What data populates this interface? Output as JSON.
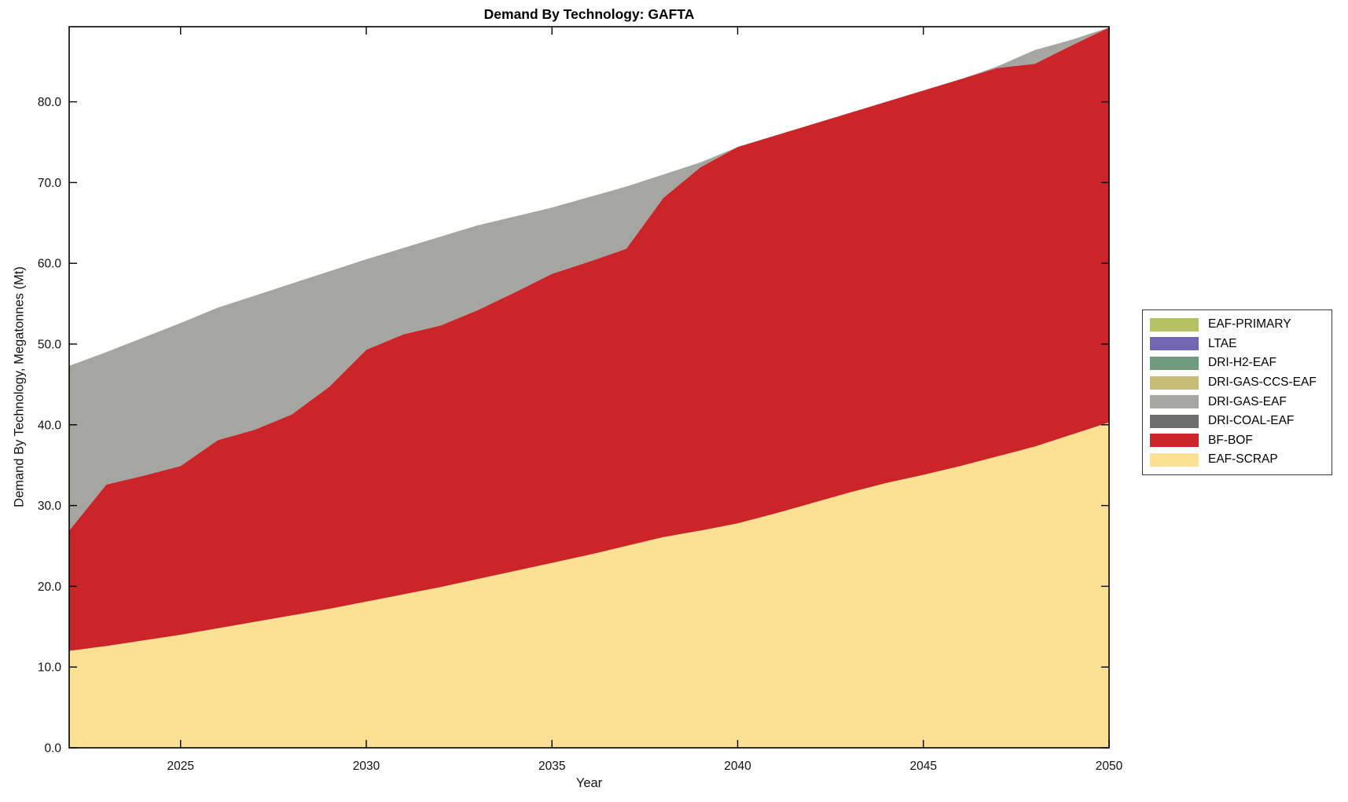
{
  "figure": {
    "title": "Demand By Technology: GAFTA",
    "xlabel": "Year",
    "ylabel": "Demand By Technology, Megatonnes (Mt)"
  },
  "chart_data": {
    "type": "area",
    "stacked": true,
    "title": "Demand By Technology: GAFTA",
    "xlabel": "Year",
    "ylabel": "Demand By Technology, Megatonnes (Mt)",
    "grid": false,
    "legend_position": "right-outside",
    "x": [
      2022,
      2023,
      2024,
      2025,
      2026,
      2027,
      2028,
      2029,
      2030,
      2031,
      2032,
      2033,
      2034,
      2035,
      2036,
      2037,
      2038,
      2039,
      2040,
      2041,
      2042,
      2043,
      2044,
      2045,
      2046,
      2047,
      2048,
      2049,
      2050
    ],
    "xlim": [
      2022,
      2050
    ],
    "ylim": [
      0,
      89.3
    ],
    "xticks": [
      2025,
      2030,
      2035,
      2040,
      2045,
      2050
    ],
    "yticks": [
      0,
      10,
      20,
      30,
      40,
      50,
      60,
      70,
      80
    ],
    "ytick_format_decimals": 1,
    "legend_order_top_to_bottom": [
      "EAF-PRIMARY",
      "LTAE",
      "DRI-H2-EAF",
      "DRI-GAS-CCS-EAF",
      "DRI-GAS-EAF",
      "DRI-COAL-EAF",
      "BF-BOF",
      "EAF-SCRAP"
    ],
    "series": [
      {
        "name": "EAF-SCRAP",
        "color": "#fce094",
        "values": [
          12.0,
          12.6,
          13.3,
          14.0,
          14.8,
          15.6,
          16.4,
          17.2,
          18.1,
          19.0,
          19.9,
          20.9,
          21.9,
          22.9,
          23.9,
          25.0,
          26.1,
          26.9,
          27.8,
          29.0,
          30.3,
          31.6,
          32.8,
          33.8,
          34.9,
          36.1,
          37.3,
          38.8,
          40.3
        ]
      },
      {
        "name": "BF-BOF",
        "color": "#cc2529",
        "values": [
          14.9,
          20.0,
          20.4,
          20.9,
          23.3,
          23.8,
          24.9,
          27.5,
          31.2,
          32.2,
          32.4,
          33.3,
          34.5,
          35.8,
          36.3,
          36.8,
          42.0,
          45.0,
          46.6,
          46.8,
          46.9,
          47.0,
          47.2,
          47.6,
          47.9,
          48.1,
          47.4,
          48.2,
          48.9
        ]
      },
      {
        "name": "DRI-COAL-EAF",
        "color": "#6e6e6e",
        "values": [
          0,
          0,
          0,
          0,
          0,
          0,
          0,
          0,
          0,
          0,
          0,
          0,
          0,
          0,
          0,
          0,
          0,
          0,
          0,
          0,
          0,
          0,
          0,
          0,
          0,
          0,
          0,
          0,
          0
        ]
      },
      {
        "name": "DRI-GAS-EAF",
        "color": "#a5a5a2",
        "values": [
          20.4,
          16.4,
          17.1,
          17.7,
          16.4,
          16.6,
          16.2,
          14.3,
          11.2,
          10.7,
          11.0,
          10.5,
          9.4,
          8.2,
          8.0,
          7.7,
          2.9,
          0.6,
          0,
          0,
          0,
          0,
          0,
          0,
          0,
          0.2,
          1.7,
          0.7,
          0
        ]
      },
      {
        "name": "DRI-GAS-CCS-EAF",
        "color": "#c8bd74",
        "values": [
          0,
          0,
          0,
          0,
          0,
          0,
          0,
          0,
          0,
          0,
          0,
          0,
          0,
          0,
          0,
          0,
          0,
          0,
          0,
          0,
          0,
          0,
          0,
          0,
          0,
          0,
          0,
          0,
          0
        ]
      },
      {
        "name": "DRI-H2-EAF",
        "color": "#719b7f",
        "values": [
          0,
          0,
          0,
          0,
          0,
          0,
          0,
          0,
          0,
          0,
          0,
          0,
          0,
          0,
          0,
          0,
          0,
          0,
          0,
          0,
          0,
          0,
          0,
          0,
          0,
          0,
          0,
          0,
          0
        ]
      },
      {
        "name": "LTAE",
        "color": "#7265b2",
        "values": [
          0,
          0,
          0,
          0,
          0,
          0,
          0,
          0,
          0,
          0,
          0,
          0,
          0,
          0,
          0,
          0,
          0,
          0,
          0,
          0,
          0,
          0,
          0,
          0,
          0,
          0,
          0,
          0,
          0
        ]
      },
      {
        "name": "EAF-PRIMARY",
        "color": "#b5c263",
        "values": [
          0,
          0,
          0,
          0,
          0,
          0,
          0,
          0,
          0,
          0,
          0,
          0,
          0,
          0,
          0,
          0,
          0,
          0,
          0,
          0,
          0,
          0,
          0,
          0,
          0,
          0,
          0,
          0,
          0
        ]
      }
    ]
  },
  "layout_colors": {
    "axis": "#000000",
    "background": "#ffffff"
  }
}
